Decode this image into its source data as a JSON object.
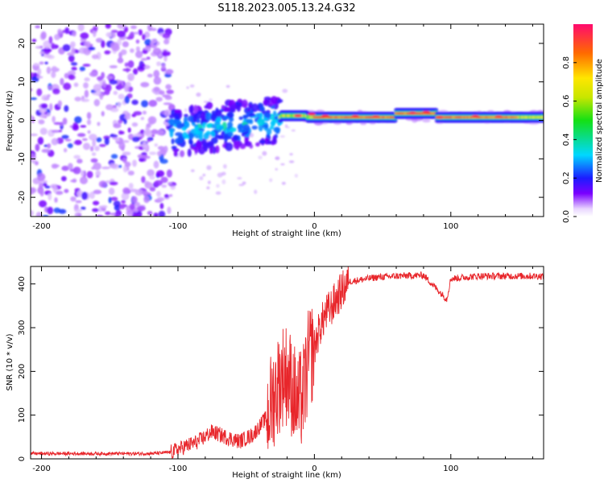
{
  "title": "S118.2023.005.13.24.G32",
  "colors": {
    "snr_line": "#e8262b",
    "axis": "#000000"
  },
  "chart_data": [
    {
      "type": "heatmap",
      "name": "spectrogram",
      "xlabel": "Height of straight line (km)",
      "ylabel": "Frequency (Hz)",
      "xlim": [
        -208,
        168
      ],
      "ylim": [
        -25,
        25
      ],
      "xticks": [
        -200,
        -100,
        0,
        100
      ],
      "xtick_labels": [
        "-200",
        "-100",
        "0",
        "100"
      ],
      "yticks": [
        -20,
        -10,
        0,
        10,
        20
      ],
      "ytick_labels": [
        "-20",
        "-10",
        "0",
        "10",
        "20"
      ],
      "colorbar": {
        "label": "Normalized spectral amplitude",
        "range": [
          0.0,
          1.0
        ],
        "ticks": [
          0.0,
          0.2,
          0.4,
          0.6,
          0.8
        ],
        "tick_labels": [
          "0.0",
          "0.2",
          "0.4",
          "0.6",
          "0.8"
        ],
        "colormap": "rainbow"
      },
      "regions": [
        {
          "description": "diffuse scattered noise",
          "x_range": [
            -208,
            -108
          ],
          "freq_range": [
            -25,
            25
          ],
          "amplitude": 0.1
        },
        {
          "description": "transition band",
          "x_range": [
            -105,
            -25
          ],
          "freq_center": -3,
          "freq_halfwidth": 6,
          "amplitude": 0.3
        },
        {
          "description": "stable carrier",
          "x_range": [
            -25,
            168
          ],
          "freq_center": 0.8,
          "freq_halfwidth": 1.2,
          "amplitude": 0.9
        }
      ]
    },
    {
      "type": "line",
      "name": "snr",
      "xlabel": "Height of straight line (km)",
      "ylabel": "SNR (10 * v/v)",
      "xlim": [
        -208,
        168
      ],
      "ylim": [
        0,
        440
      ],
      "xticks": [
        -200,
        -100,
        0,
        100
      ],
      "xtick_labels": [
        "-200",
        "-100",
        "0",
        "100"
      ],
      "yticks": [
        0,
        100,
        200,
        300,
        400
      ],
      "ytick_labels": [
        "0",
        "100",
        "200",
        "300",
        "400"
      ],
      "series": [
        {
          "name": "SNR",
          "x": [
            -208,
            -180,
            -150,
            -120,
            -105,
            -95,
            -85,
            -75,
            -65,
            -55,
            -45,
            -35,
            -28,
            -22,
            -18,
            -12,
            -8,
            -4,
            0,
            4,
            8,
            12,
            18,
            25,
            35,
            45,
            60,
            80,
            97,
            100,
            120,
            140,
            168
          ],
          "y": [
            12,
            12,
            12,
            12,
            15,
            28,
            40,
            62,
            50,
            40,
            55,
            95,
            160,
            200,
            180,
            120,
            150,
            230,
            255,
            300,
            330,
            345,
            375,
            405,
            410,
            415,
            418,
            420,
            365,
            412,
            418,
            418,
            418
          ]
        }
      ]
    }
  ]
}
